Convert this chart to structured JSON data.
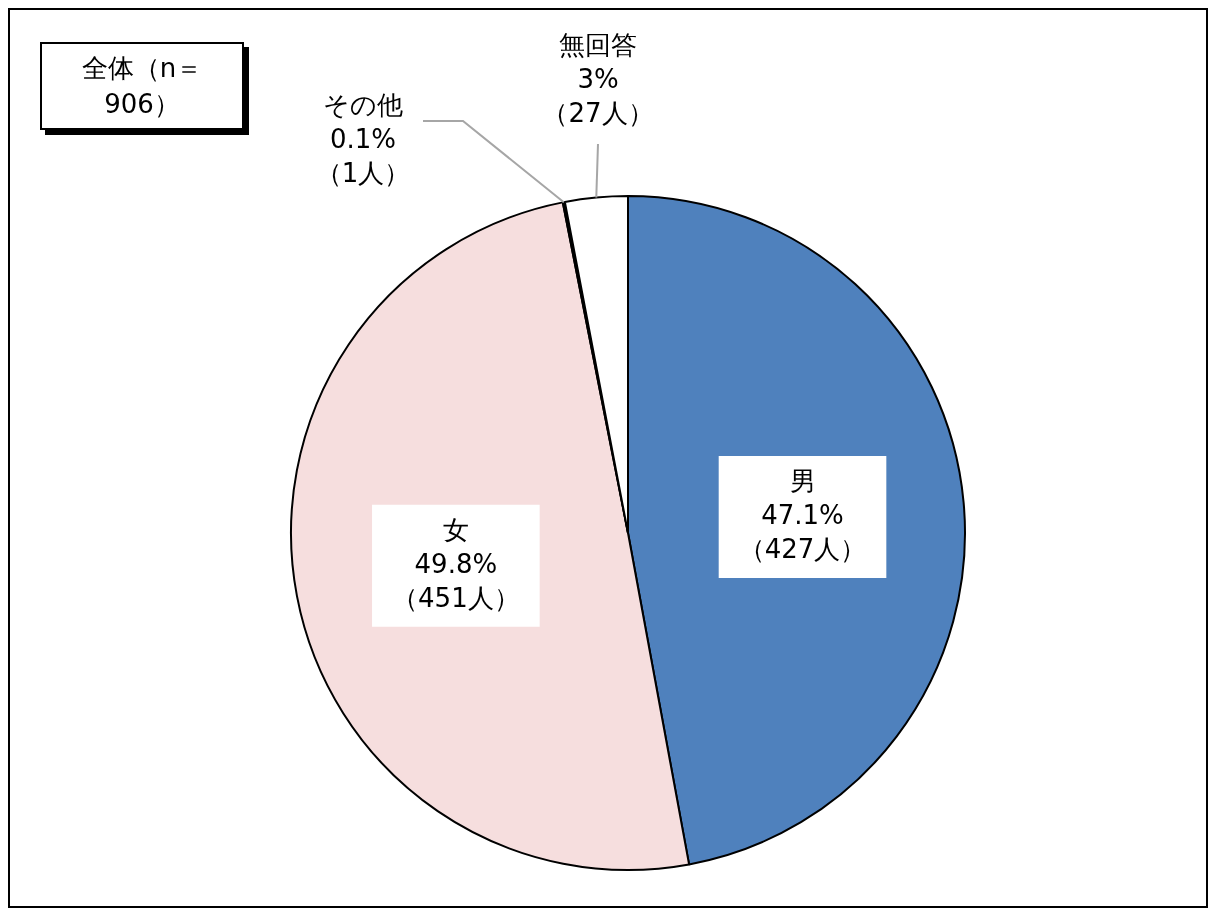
{
  "chart_data": {
    "type": "pie",
    "title": "全体（n＝906）",
    "categories": [
      "男",
      "女",
      "その他",
      "無回答"
    ],
    "values": [
      47.1,
      49.8,
      0.1,
      3
    ],
    "colors": [
      "#4f81bd",
      "#f6dede",
      "#000000",
      "#ffffff"
    ],
    "value_labels": [
      "47.1%\n（427人）",
      "49.8%\n（451人）",
      "0.1%\n（1人）",
      "3%\n（27人）"
    ],
    "legend": false
  }
}
